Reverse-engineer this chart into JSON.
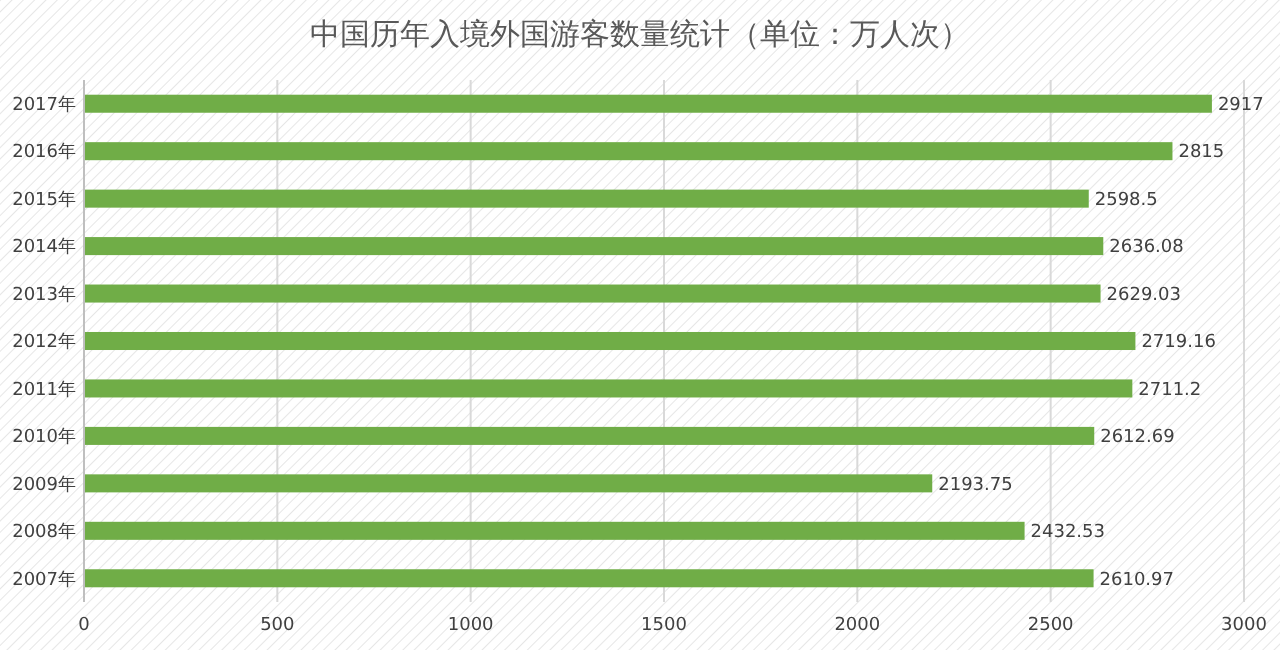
{
  "chart_data": {
    "type": "bar",
    "orientation": "horizontal",
    "title": "中国历年入境外国游客数量统计（单位：万人次）",
    "categories": [
      "2017年",
      "2016年",
      "2015年",
      "2014年",
      "2013年",
      "2012年",
      "2011年",
      "2010年",
      "2009年",
      "2008年",
      "2007年"
    ],
    "values": [
      2917,
      2815,
      2598.5,
      2636.08,
      2629.03,
      2719.16,
      2711.2,
      2612.69,
      2193.75,
      2432.53,
      2610.97
    ],
    "color": "#70ad47",
    "xlim": [
      0,
      3000
    ],
    "xticks": [
      0,
      500,
      1000,
      1500,
      2000,
      2500,
      3000
    ],
    "grid": "x",
    "data_labels": true
  }
}
